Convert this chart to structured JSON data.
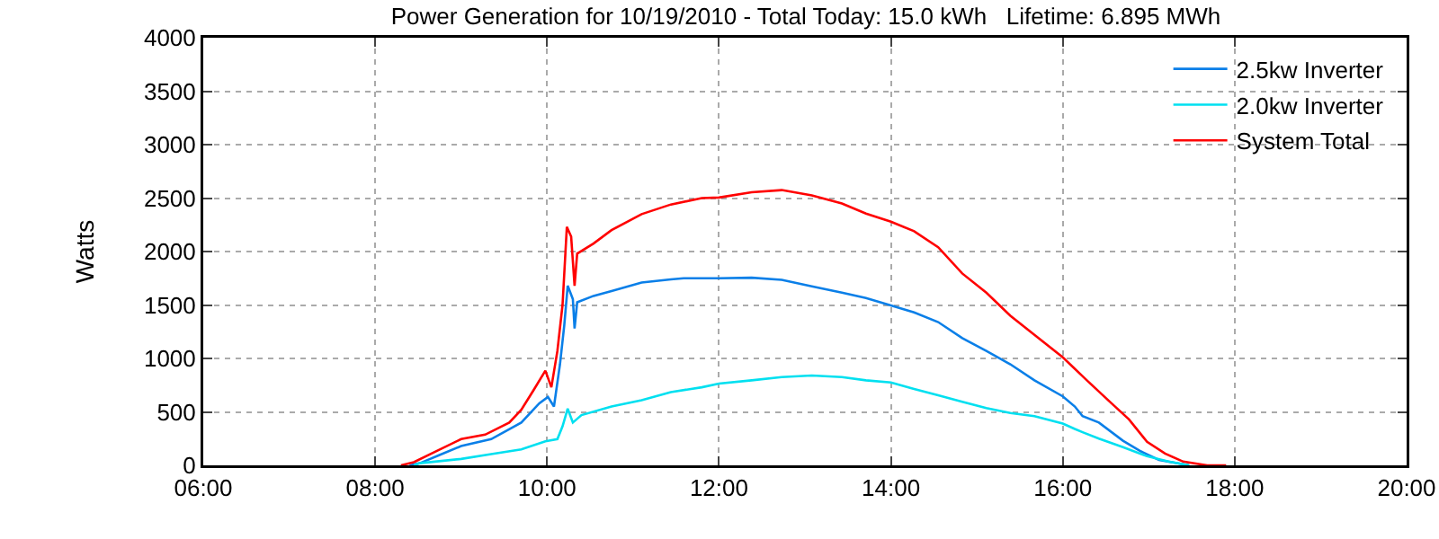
{
  "chart_data": {
    "type": "line",
    "title": "Power Generation for 10/19/2010 - Total Today: 15.0 kWh   Lifetime: 6.895 MWh",
    "ylabel": "Watts",
    "xlim": [
      6,
      20
    ],
    "xticks": [
      {
        "value": 6,
        "label": "06:00"
      },
      {
        "value": 8,
        "label": "08:00"
      },
      {
        "value": 10,
        "label": "10:00"
      },
      {
        "value": 12,
        "label": "12:00"
      },
      {
        "value": 14,
        "label": "14:00"
      },
      {
        "value": 16,
        "label": "16:00"
      },
      {
        "value": 18,
        "label": "18:00"
      },
      {
        "value": 20,
        "label": "20:00"
      }
    ],
    "ylim": [
      0,
      4000
    ],
    "yticks": [
      0,
      500,
      1000,
      1500,
      2000,
      2500,
      3000,
      3500,
      4000
    ],
    "grid": true,
    "legend": "top right",
    "marker": "none",
    "line_style": "solid",
    "series": [
      {
        "name": "2.5kw Inverter",
        "color": "#0a7fe8",
        "x": [
          8.4,
          8.52,
          8.73,
          9.0,
          9.35,
          9.7,
          9.91,
          10.01,
          10.08,
          10.15,
          10.2,
          10.24,
          10.3,
          10.32,
          10.35,
          10.54,
          10.75,
          11.1,
          11.44,
          11.59,
          12.0,
          12.38,
          12.73,
          13.08,
          13.43,
          13.71,
          14.0,
          14.27,
          14.55,
          14.83,
          15.11,
          15.39,
          15.67,
          16.0,
          16.14,
          16.23,
          16.42,
          16.7,
          16.91,
          17.12,
          17.47
        ],
        "values": [
          0,
          20,
          90,
          180,
          245,
          400,
          580,
          640,
          550,
          945,
          1310,
          1680,
          1555,
          1280,
          1525,
          1585,
          1630,
          1710,
          1740,
          1750,
          1750,
          1755,
          1735,
          1675,
          1615,
          1565,
          1495,
          1430,
          1340,
          1190,
          1070,
          945,
          795,
          645,
          550,
          460,
          400,
          230,
          130,
          50,
          0
        ]
      },
      {
        "name": "2.0kw Inverter",
        "color": "#00e0f0",
        "x": [
          8.45,
          8.52,
          9.0,
          9.35,
          9.7,
          9.98,
          10.12,
          10.18,
          10.24,
          10.3,
          10.4,
          10.75,
          11.1,
          11.44,
          11.8,
          12.0,
          12.38,
          12.73,
          13.08,
          13.43,
          13.71,
          14.0,
          14.27,
          14.55,
          14.83,
          15.11,
          15.39,
          15.67,
          16.0,
          16.14,
          16.23,
          16.42,
          16.7,
          16.98,
          17.23,
          17.47
        ],
        "values": [
          0,
          20,
          60,
          105,
          150,
          225,
          245,
          365,
          530,
          400,
          470,
          550,
          610,
          685,
          730,
          765,
          795,
          825,
          840,
          825,
          795,
          775,
          715,
          655,
          595,
          535,
          490,
          460,
          390,
          340,
          310,
          250,
          170,
          85,
          35,
          0
        ]
      },
      {
        "name": "System Total",
        "color": "#ff0000",
        "x": [
          8.3,
          8.45,
          8.73,
          9.0,
          9.28,
          9.56,
          9.7,
          9.84,
          9.98,
          10.05,
          10.12,
          10.18,
          10.23,
          10.28,
          10.32,
          10.35,
          10.54,
          10.75,
          11.1,
          11.44,
          11.8,
          12.0,
          12.38,
          12.73,
          13.08,
          13.43,
          13.71,
          14.0,
          14.27,
          14.55,
          14.83,
          15.11,
          15.39,
          15.67,
          16.0,
          16.28,
          16.56,
          16.77,
          16.98,
          17.19,
          17.4,
          17.68,
          17.9
        ],
        "values": [
          0,
          30,
          140,
          245,
          287,
          400,
          520,
          700,
          885,
          730,
          1070,
          1500,
          2230,
          2140,
          1680,
          1980,
          2075,
          2200,
          2350,
          2440,
          2500,
          2505,
          2555,
          2575,
          2525,
          2450,
          2355,
          2280,
          2190,
          2040,
          1795,
          1615,
          1400,
          1220,
          1010,
          795,
          585,
          430,
          220,
          110,
          35,
          0,
          0
        ]
      }
    ]
  }
}
